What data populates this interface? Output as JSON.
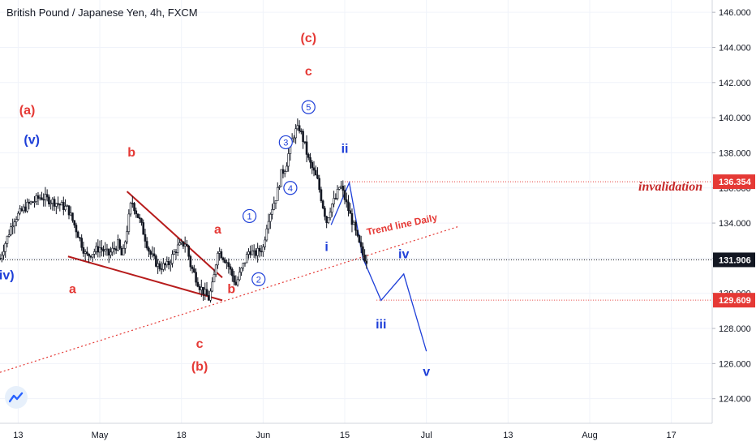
{
  "chart_data": {
    "type": "line",
    "title": "British Pound / Japanese Yen, 4h, FXCM",
    "ylim": [
      122.6,
      146.7
    ],
    "y_ticks": [
      "146.000",
      "144.000",
      "142.000",
      "140.000",
      "138.000",
      "136.000",
      "134.000",
      "132.000",
      "130.000",
      "128.000",
      "126.000",
      "124.000"
    ],
    "y_tick_values": [
      146,
      144,
      142,
      140,
      138,
      136,
      134,
      132,
      130,
      128,
      126,
      124
    ],
    "x_ticks": [
      "13",
      "May",
      "18",
      "Jun",
      "15",
      "Jul",
      "13",
      "Aug",
      "17"
    ],
    "x_tick_days": [
      13,
      31,
      49,
      67,
      85,
      103,
      121,
      139,
      157
    ],
    "xlim": [
      9,
      166
    ],
    "price_labels": [
      {
        "text": "136.354",
        "value": 136.354,
        "color": "#e53935"
      },
      {
        "text": "131.906",
        "value": 131.906,
        "color": "#131722"
      },
      {
        "text": "129.609",
        "value": 129.609,
        "color": "#e53935"
      }
    ],
    "price_path": [
      [
        9,
        132.0
      ],
      [
        12,
        134.2
      ],
      [
        15,
        135.0
      ],
      [
        18,
        135.5
      ],
      [
        21,
        135.2
      ],
      [
        24,
        134.8
      ],
      [
        26,
        133.5
      ],
      [
        28,
        132.1
      ],
      [
        31,
        132.6
      ],
      [
        33,
        132.2
      ],
      [
        35,
        132.8
      ],
      [
        36,
        132.0
      ],
      [
        38,
        135.3
      ],
      [
        40,
        134.0
      ],
      [
        42,
        132.3
      ],
      [
        44,
        131.5
      ],
      [
        46,
        131.6
      ],
      [
        48,
        132.6
      ],
      [
        50,
        132.9
      ],
      [
        51,
        131.6
      ],
      [
        53,
        130.4
      ],
      [
        55,
        129.7
      ],
      [
        56,
        130.6
      ],
      [
        57,
        132.5
      ],
      [
        59,
        131.8
      ],
      [
        61,
        130.5
      ],
      [
        62,
        131.2
      ],
      [
        64,
        132.5
      ],
      [
        65,
        132.2
      ],
      [
        67,
        132.6
      ],
      [
        68,
        134.2
      ],
      [
        70,
        135.6
      ],
      [
        71,
        136.8
      ],
      [
        72,
        137.2
      ],
      [
        73,
        138.4
      ],
      [
        74,
        139.2
      ],
      [
        75,
        139.4
      ],
      [
        76,
        138.6
      ],
      [
        77,
        137.6
      ],
      [
        79,
        136.4
      ],
      [
        80,
        135.2
      ],
      [
        81,
        134.1
      ],
      [
        82,
        135.0
      ],
      [
        83,
        135.4
      ],
      [
        84,
        136.2
      ],
      [
        85,
        135.4
      ],
      [
        86,
        134.6
      ],
      [
        87,
        133.8
      ],
      [
        88,
        132.9
      ],
      [
        89,
        132.2
      ],
      [
        90,
        131.8
      ]
    ],
    "projection": [
      [
        82,
        133.9
      ],
      [
        86,
        136.3
      ],
      [
        89,
        132.0
      ],
      [
        93,
        129.6
      ],
      [
        98,
        131.1
      ],
      [
        103,
        126.7
      ]
    ],
    "wave_labels": [
      {
        "text": "(a)",
        "x": 15,
        "y": 140.2,
        "color": "#e53935"
      },
      {
        "text": "(v)",
        "x": 16,
        "y": 138.5,
        "color": "#1e3fd8"
      },
      {
        "text": "(iv)",
        "x": 10,
        "y": 130.8,
        "color": "#1e3fd8"
      },
      {
        "text": "a",
        "x": 25,
        "y": 130.0,
        "color": "#e53935"
      },
      {
        "text": "b",
        "x": 38,
        "y": 137.8,
        "color": "#e53935"
      },
      {
        "text": "c",
        "x": 53,
        "y": 126.9,
        "color": "#e53935"
      },
      {
        "text": "(b)",
        "x": 53,
        "y": 125.6,
        "color": "#e53935"
      },
      {
        "text": "a",
        "x": 57,
        "y": 133.4,
        "color": "#e53935"
      },
      {
        "text": "b",
        "x": 60,
        "y": 130.0,
        "color": "#e53935"
      },
      {
        "text": "(c)",
        "x": 77,
        "y": 144.3,
        "color": "#e53935"
      },
      {
        "text": "c",
        "x": 77,
        "y": 142.4,
        "color": "#e53935"
      },
      {
        "text": "ii",
        "x": 85,
        "y": 138.0,
        "color": "#1e3fd8"
      },
      {
        "text": "i",
        "x": 81,
        "y": 132.4,
        "color": "#1e3fd8"
      },
      {
        "text": "iv",
        "x": 98,
        "y": 132.0,
        "color": "#1e3fd8"
      },
      {
        "text": "iii",
        "x": 93,
        "y": 128.0,
        "color": "#1e3fd8"
      },
      {
        "text": "v",
        "x": 103,
        "y": 125.3,
        "color": "#1e3fd8"
      }
    ],
    "circled_labels": [
      {
        "text": "1",
        "x": 64,
        "y": 134.4
      },
      {
        "text": "2",
        "x": 66,
        "y": 130.8
      },
      {
        "text": "3",
        "x": 72,
        "y": 138.6
      },
      {
        "text": "4",
        "x": 73,
        "y": 136.0
      },
      {
        "text": "5",
        "x": 77,
        "y": 140.6
      }
    ],
    "annotations": [
      {
        "text": "Trend line Daily",
        "x": 90,
        "y": 133.3,
        "color": "#e53935"
      },
      {
        "text": "invalidation",
        "color": "#c62828"
      }
    ],
    "trend_lines": [
      {
        "from": [
          24,
          132.1
        ],
        "to": [
          58,
          129.6
        ],
        "color": "#b71c1c"
      },
      {
        "from": [
          37,
          135.8
        ],
        "to": [
          58,
          130.9
        ],
        "color": "#b71c1c"
      },
      {
        "from": [
          9,
          125.5
        ],
        "to": [
          110,
          133.8
        ],
        "color": "#e53935",
        "dotted": true
      }
    ]
  }
}
